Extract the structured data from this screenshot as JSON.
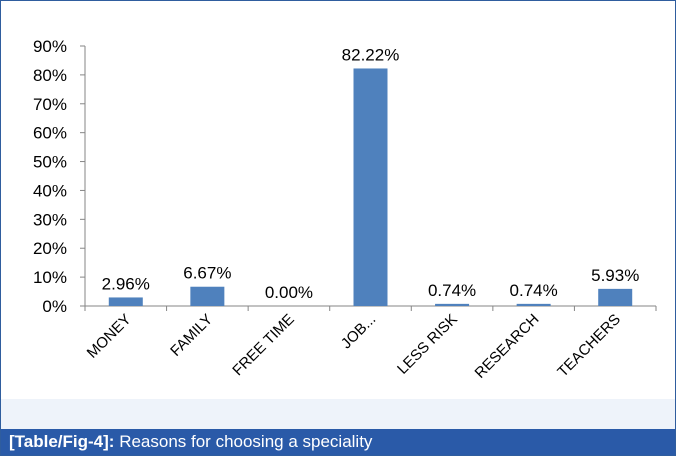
{
  "caption": {
    "label": "[Table/Fig-4]:",
    "text": "Reasons for choosing a speciality"
  },
  "colors": {
    "bar": "#4f81bd",
    "caption_background": "#2a5aa8",
    "frame": "#2f5d9e"
  },
  "chart_data": {
    "type": "bar",
    "categories": [
      "MONEY",
      "FAMILY",
      "FREE TIME",
      "JOB...",
      "LESS RISK",
      "RESEARCH",
      "TEACHERS"
    ],
    "values": [
      2.96,
      6.67,
      0.0,
      82.22,
      0.74,
      0.74,
      5.93
    ],
    "data_labels": [
      "2.96%",
      "6.67%",
      "0.00%",
      "82.22%",
      "0.74%",
      "0.74%",
      "5.93%"
    ],
    "y_ticks": [
      "0%",
      "10%",
      "20%",
      "30%",
      "40%",
      "50%",
      "60%",
      "70%",
      "80%",
      "90%"
    ],
    "ylim": [
      0,
      90
    ],
    "grid": false,
    "legend": "none"
  }
}
